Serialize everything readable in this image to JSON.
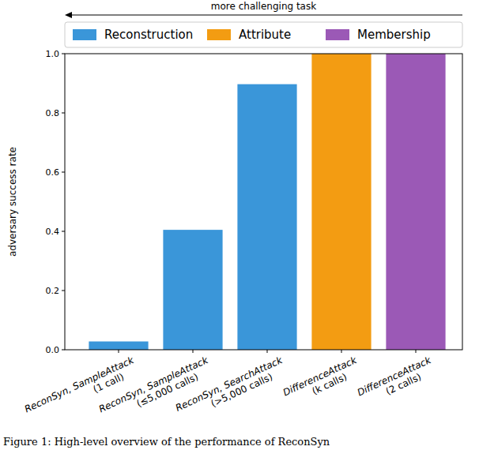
{
  "chart_data": {
    "type": "bar",
    "annotation": "more challenging task",
    "y_label": "adversary success rate",
    "caption": "Figure 1: High-level overview of the performance of ReconSyn",
    "categories": [
      "ReconSyn, SampleAttack (1 call)",
      "ReconSyn, SampleAttack (≤5,000 calls)",
      "ReconSyn, SearchAttack (>5,000 calls)",
      "DifferenceAttack (k calls)",
      "DifferenceAttack (2 calls)"
    ],
    "series": [
      {
        "name": "Reconstruction",
        "color": "#3a96d9",
        "values": [
          0.028,
          0.405,
          0.897,
          null,
          null
        ]
      },
      {
        "name": "Attribute",
        "color": "#f39c12",
        "values": [
          null,
          null,
          null,
          1.0,
          null
        ]
      },
      {
        "name": "Membership",
        "color": "#9b59b6",
        "values": [
          null,
          null,
          null,
          null,
          1.0
        ]
      }
    ],
    "ylim": [
      0,
      1.0
    ],
    "yticks": [
      {
        "value": 0,
        "label": "0.0"
      },
      {
        "value": 0.2,
        "label": "0.2"
      },
      {
        "value": 0.4,
        "label": "0.4"
      },
      {
        "value": 0.6,
        "label": "0.6"
      },
      {
        "value": 0.8,
        "label": "0.8"
      },
      {
        "value": 1.0,
        "label": "1.0"
      }
    ],
    "grid": false,
    "legend": "top"
  }
}
